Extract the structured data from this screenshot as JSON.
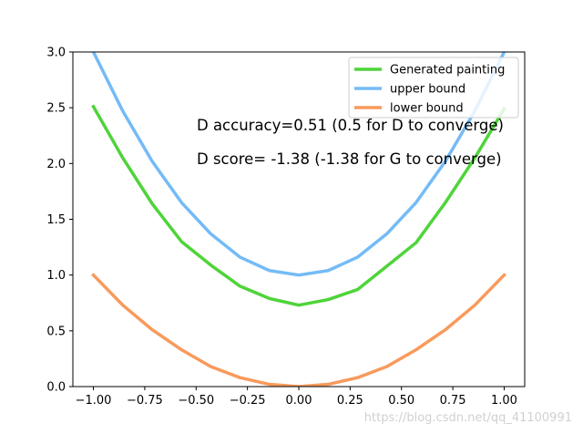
{
  "chart_data": {
    "type": "line",
    "title": "",
    "xlabel": "",
    "ylabel": "",
    "xlim": [
      -1.1,
      1.1
    ],
    "ylim": [
      0,
      3.0
    ],
    "x_ticks": [
      "−1.00",
      "−0.75",
      "−0.50",
      "−0.25",
      "0.00",
      "0.25",
      "0.50",
      "0.75",
      "1.00"
    ],
    "y_ticks": [
      "0.0",
      "0.5",
      "1.0",
      "1.5",
      "2.0",
      "2.5",
      "3.0"
    ],
    "x": [
      -1.0,
      -0.857,
      -0.714,
      -0.571,
      -0.429,
      -0.286,
      -0.143,
      0.0,
      0.143,
      0.286,
      0.429,
      0.571,
      0.714,
      0.857,
      1.0
    ],
    "series": [
      {
        "name": "Generated painting",
        "color": "#4fd43a",
        "values": [
          2.51,
          2.05,
          1.64,
          1.3,
          1.09,
          0.9,
          0.79,
          0.73,
          0.78,
          0.87,
          1.08,
          1.29,
          1.65,
          2.05,
          2.49
        ]
      },
      {
        "name": "upper bound",
        "color": "#74bbf7",
        "values": [
          3.0,
          2.47,
          2.02,
          1.65,
          1.37,
          1.16,
          1.04,
          1.0,
          1.04,
          1.16,
          1.37,
          1.65,
          2.02,
          2.47,
          3.0
        ]
      },
      {
        "name": "lower bound",
        "color": "#f89a5c",
        "values": [
          1.0,
          0.73,
          0.51,
          0.33,
          0.18,
          0.08,
          0.02,
          0.0,
          0.02,
          0.08,
          0.18,
          0.33,
          0.51,
          0.73,
          1.0
        ]
      }
    ],
    "legend_position": "top-right",
    "grid": false,
    "annotations": [
      "D accuracy=0.51 (0.5 for D to converge)",
      "D score= -1.38 (-1.38 for G to converge)"
    ]
  },
  "watermark": "https://blog.csdn.net/qq_41100991"
}
